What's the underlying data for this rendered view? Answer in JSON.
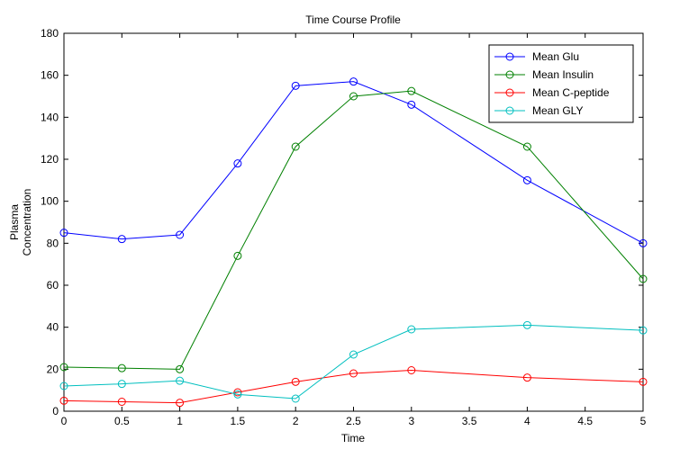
{
  "chart_data": {
    "type": "line",
    "title": "Time Course Profile",
    "xlabel": "Time",
    "ylabel_lines": [
      "Plasma",
      "Concentration"
    ],
    "xlim": [
      0,
      5
    ],
    "ylim": [
      0,
      180
    ],
    "xticks": [
      0,
      0.5,
      1,
      1.5,
      2,
      2.5,
      3,
      3.5,
      4,
      4.5,
      5
    ],
    "yticks": [
      0,
      20,
      40,
      60,
      80,
      100,
      120,
      140,
      160,
      180
    ],
    "x": [
      0,
      0.5,
      1,
      1.5,
      2,
      2.5,
      3,
      4,
      5
    ],
    "grid": false,
    "legend_position": "top-right",
    "marker": "circle",
    "series": [
      {
        "name": "Mean Glu",
        "color": "#0000ff",
        "values": [
          85,
          82,
          84,
          118,
          155,
          157,
          146,
          110,
          80
        ]
      },
      {
        "name": "Mean Insulin",
        "color": "#008000",
        "values": [
          21,
          20.5,
          20,
          74,
          126,
          150,
          152.5,
          126,
          63
        ]
      },
      {
        "name": "Mean C-peptide",
        "color": "#ff0000",
        "values": [
          5,
          4.5,
          4,
          9,
          14,
          18,
          19.5,
          16,
          14
        ]
      },
      {
        "name": "Mean GLY",
        "color": "#00bfbf",
        "values": [
          12,
          13,
          14.5,
          8,
          6,
          27,
          39,
          41,
          38.5
        ]
      }
    ]
  }
}
